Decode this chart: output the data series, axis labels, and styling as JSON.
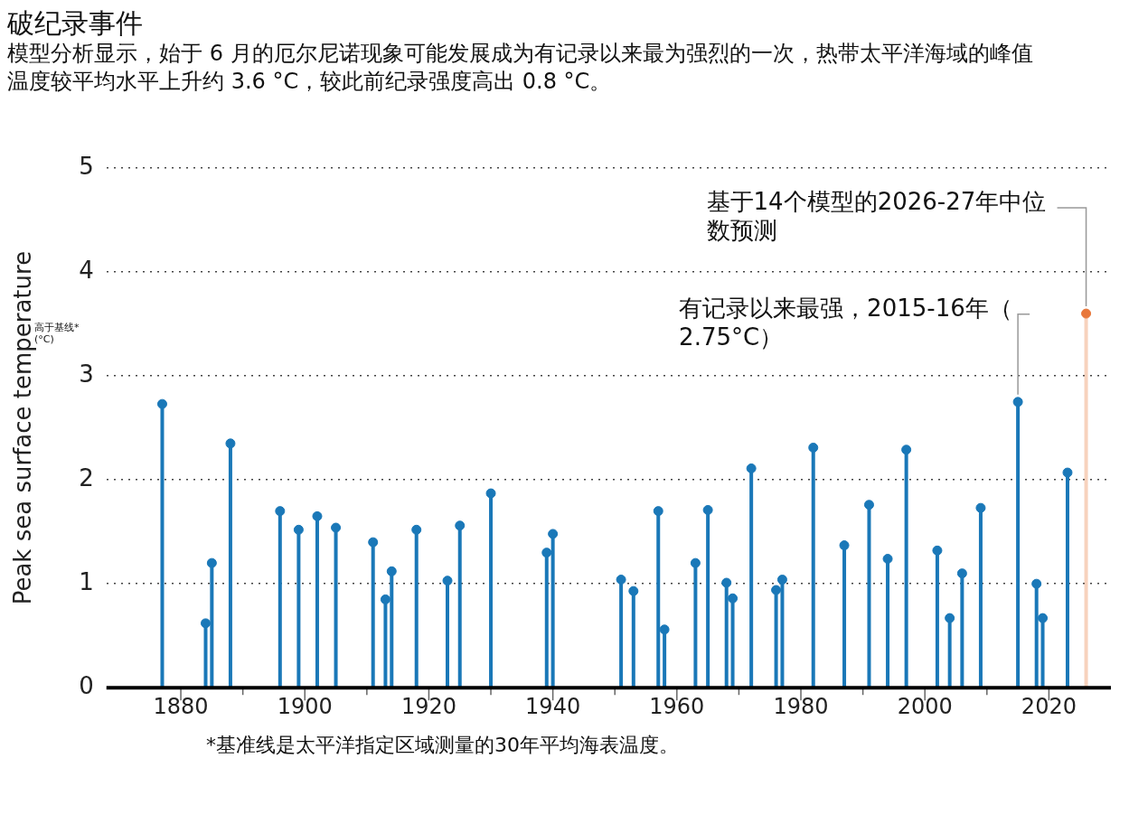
{
  "chart_data": {
    "type": "lollipop",
    "title": "破纪录事件",
    "subtitle": "模型分析显示，始于 6 月的厄尔尼诺现象可能发展成为有记录以来最为强烈的一次，热带太平洋海域的峰值温度较平均水平上升约 3.6 °C，较此前纪录强度高出 0.8 °C。",
    "ylabel": "Peak sea surface temperature",
    "x": [
      1877,
      1884,
      1885,
      1888,
      1896,
      1899,
      1902,
      1905,
      1911,
      1913,
      1914,
      1918,
      1923,
      1925,
      1930,
      1939,
      1940,
      1951,
      1953,
      1957,
      1958,
      1963,
      1965,
      1968,
      1969,
      1972,
      1976,
      1977,
      1982,
      1987,
      1991,
      1994,
      1997,
      2002,
      2004,
      2006,
      2009,
      2015,
      2018,
      2019,
      2023
    ],
    "series": [
      {
        "color": "#1a78b8",
        "values": [
          2.73,
          0.62,
          1.2,
          2.35,
          1.7,
          1.52,
          1.65,
          1.54,
          1.4,
          0.85,
          1.12,
          1.52,
          1.03,
          1.56,
          1.87,
          1.3,
          1.48,
          1.04,
          0.93,
          1.7,
          0.56,
          1.2,
          1.71,
          1.01,
          0.86,
          2.11,
          0.94,
          1.04,
          2.31,
          1.37,
          1.76,
          1.24,
          2.29,
          1.32,
          0.67,
          1.1,
          1.73,
          2.75,
          1.0,
          0.67,
          2.07
        ]
      },
      {
        "color": "#e8773a",
        "x": [
          2026
        ],
        "values": [
          3.6
        ]
      }
    ],
    "xlim": [
      1868,
      2030
    ],
    "xticks": [
      1880,
      {
        "value": 1890,
        "label": null
      },
      1900,
      {
        "value": 1910,
        "label": null
      },
      1920,
      {
        "value": 1930,
        "label": null
      },
      1940,
      {
        "value": 1950,
        "label": null
      },
      1960,
      {
        "value": 1970,
        "label": null
      },
      1980,
      {
        "value": 1990,
        "label": null
      },
      2000,
      {
        "value": 2010,
        "label": null
      },
      2020
    ],
    "ylim": [
      0,
      5
    ],
    "yticks": [
      0,
      1,
      2,
      3,
      4,
      5
    ],
    "grid": "y",
    "marker": "circle",
    "annotations": [
      {
        "text": "基于14个模型的2026-27年中位数预测",
        "x": 2026,
        "y": 3.6
      },
      {
        "text": "有记录以来最强，2015-16年（2.75°C）",
        "x": 2015,
        "y": 2.75
      },
      "*基准线是太平洋指定区域测量的30年平均海表温度。",
      "高于基线* (°C)"
    ]
  }
}
